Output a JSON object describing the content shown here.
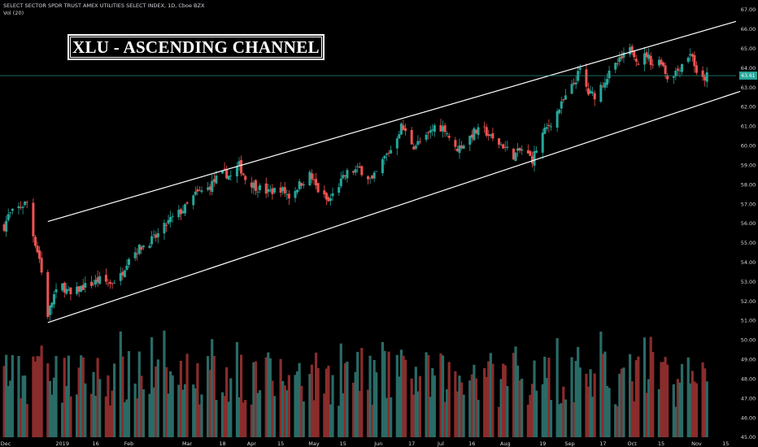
{
  "header": {
    "symbol_line": "SELECT SECTOR SPDR TRUST AMEX UTILITIES SELECT INDEX, 1D, Cboe BZX",
    "volume_line": "Vol (20)"
  },
  "annotation": {
    "title": "XLU - ASCENDING CHANNEL"
  },
  "colors": {
    "background": "#000000",
    "up": "#26a69a",
    "down": "#ef5350",
    "volume_up": "#2a6b66",
    "volume_down": "#8a2c2c",
    "channel": "#ffffff",
    "last_price_line": "#26a69a"
  },
  "chart_data": {
    "type": "candlestick",
    "last_price": "63.61",
    "y_ticks": [
      "67.00",
      "66.00",
      "65.00",
      "64.00",
      "63.00",
      "62.00",
      "61.00",
      "60.00",
      "59.00",
      "58.00",
      "57.00",
      "56.00",
      "55.00",
      "54.00",
      "53.00",
      "52.00",
      "51.00",
      "50.00",
      "49.00",
      "48.00",
      "47.00",
      "46.00",
      "45.00"
    ],
    "ylim": [
      45,
      67.5
    ],
    "x_ticks": [
      "Dec",
      "2019",
      "16",
      "Feb",
      "Mar",
      "18",
      "Apr",
      "15",
      "May",
      "15",
      "Jun",
      "17",
      "Jul",
      "16",
      "Aug",
      "19",
      "Sep",
      "17",
      "Oct",
      "15",
      "Nov",
      "15"
    ],
    "x_range": [
      "2018-12-01",
      "2019-11-20"
    ],
    "anchors": [
      [
        "2018-12-01",
        55.3
      ],
      [
        "2018-12-05",
        56.4
      ],
      [
        "2018-12-10",
        56.8
      ],
      [
        "2018-12-14",
        57.1
      ],
      [
        "2018-12-17",
        55.4
      ],
      [
        "2018-12-20",
        54.2
      ],
      [
        "2018-12-24",
        51.3
      ],
      [
        "2018-12-27",
        52.3
      ],
      [
        "2018-12-31",
        52.8
      ],
      [
        "2019-01-04",
        52.3
      ],
      [
        "2019-01-09",
        52.7
      ],
      [
        "2019-01-14",
        52.9
      ],
      [
        "2019-01-18",
        53.1
      ],
      [
        "2019-01-23",
        52.9
      ],
      [
        "2019-01-28",
        53.3
      ],
      [
        "2019-02-01",
        54.3
      ],
      [
        "2019-02-07",
        54.8
      ],
      [
        "2019-02-14",
        55.3
      ],
      [
        "2019-02-21",
        56.2
      ],
      [
        "2019-02-28",
        56.8
      ],
      [
        "2019-03-05",
        57.5
      ],
      [
        "2019-03-11",
        57.8
      ],
      [
        "2019-03-15",
        58.3
      ],
      [
        "2019-03-19",
        58.6
      ],
      [
        "2019-03-22",
        58.4
      ],
      [
        "2019-03-26",
        59.0
      ],
      [
        "2019-03-29",
        58.3
      ],
      [
        "2019-04-03",
        57.9
      ],
      [
        "2019-04-09",
        57.6
      ],
      [
        "2019-04-15",
        57.8
      ],
      [
        "2019-04-19",
        57.4
      ],
      [
        "2019-04-24",
        58.0
      ],
      [
        "2019-04-29",
        58.5
      ],
      [
        "2019-05-03",
        57.7
      ],
      [
        "2019-05-08",
        57.1
      ],
      [
        "2019-05-13",
        58.0
      ],
      [
        "2019-05-17",
        58.6
      ],
      [
        "2019-05-23",
        58.8
      ],
      [
        "2019-05-29",
        58.2
      ],
      [
        "2019-06-04",
        59.4
      ],
      [
        "2019-06-07",
        59.8
      ],
      [
        "2019-06-12",
        61.0
      ],
      [
        "2019-06-18",
        60.0
      ],
      [
        "2019-06-24",
        60.4
      ],
      [
        "2019-06-28",
        61.0
      ],
      [
        "2019-07-03",
        60.9
      ],
      [
        "2019-07-08",
        59.8
      ],
      [
        "2019-07-12",
        60.1
      ],
      [
        "2019-07-17",
        60.7
      ],
      [
        "2019-07-22",
        60.8
      ],
      [
        "2019-07-26",
        60.3
      ],
      [
        "2019-07-31",
        60.0
      ],
      [
        "2019-08-05",
        59.5
      ],
      [
        "2019-08-09",
        59.8
      ],
      [
        "2019-08-14",
        59.3
      ],
      [
        "2019-08-19",
        60.6
      ],
      [
        "2019-08-23",
        61.2
      ],
      [
        "2019-08-28",
        62.1
      ],
      [
        "2019-09-03",
        63.2
      ],
      [
        "2019-09-06",
        63.9
      ],
      [
        "2019-09-10",
        62.7
      ],
      [
        "2019-09-13",
        62.6
      ],
      [
        "2019-09-18",
        63.4
      ],
      [
        "2019-09-23",
        64.1
      ],
      [
        "2019-09-27",
        64.6
      ],
      [
        "2019-10-01",
        65.0
      ],
      [
        "2019-10-04",
        64.3
      ],
      [
        "2019-10-08",
        64.7
      ],
      [
        "2019-10-11",
        64.2
      ],
      [
        "2019-10-15",
        64.4
      ],
      [
        "2019-10-18",
        63.5
      ],
      [
        "2019-10-23",
        63.9
      ],
      [
        "2019-10-27",
        64.6
      ],
      [
        "2019-10-30",
        64.7
      ],
      [
        "2019-11-01",
        63.6
      ],
      [
        "2019-11-04",
        63.4
      ],
      [
        "2019-11-06",
        63.6
      ]
    ],
    "channel_lines": [
      {
        "name": "upper",
        "points": [
          [
            "2018-12-24",
            56.1
          ],
          [
            "2019-11-20",
            66.4
          ]
        ]
      },
      {
        "name": "lower",
        "points": [
          [
            "2018-12-24",
            50.9
          ],
          [
            "2019-11-22",
            62.8
          ]
        ]
      }
    ]
  }
}
